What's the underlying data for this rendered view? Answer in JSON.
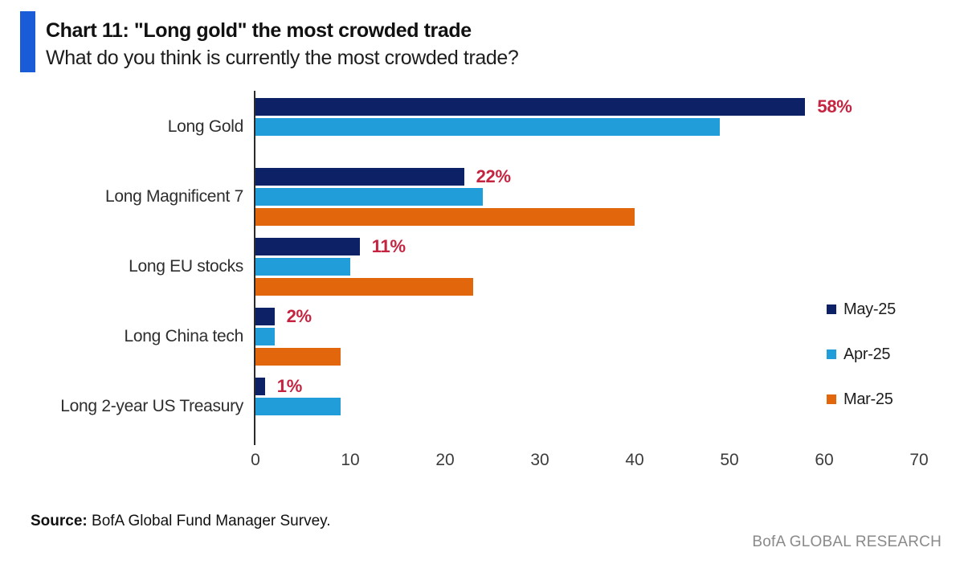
{
  "header": {
    "title": "Chart 11: \"Long gold\" the most crowded trade",
    "subtitle": "What do you think is currently the most crowded trade?",
    "accent_color": "#1A5BD7"
  },
  "chart_data": {
    "type": "bar",
    "orientation": "horizontal",
    "title": "Chart 11: \"Long gold\" the most crowded trade",
    "subtitle": "What do you think is currently the most crowded trade?",
    "categories": [
      "Long Gold",
      "Long Magnificent 7",
      "Long EU stocks",
      "Long China tech",
      "Long 2-year US Treasury"
    ],
    "series": [
      {
        "name": "May-25",
        "color": "#0D2167",
        "values": [
          58,
          22,
          11,
          2,
          1
        ]
      },
      {
        "name": "Apr-25",
        "color": "#219ED9",
        "values": [
          49,
          24,
          10,
          2,
          9
        ]
      },
      {
        "name": "Mar-25",
        "color": "#E2660B",
        "values": [
          null,
          40,
          23,
          9,
          null
        ]
      }
    ],
    "value_labels": {
      "applies_to_series": "May-25",
      "texts": [
        "58%",
        "22%",
        "11%",
        "2%",
        "1%"
      ],
      "color": "#C52441"
    },
    "x_ticks": [
      "0",
      "10",
      "20",
      "30",
      "40",
      "50",
      "60",
      "70"
    ],
    "xlim": [
      0,
      70
    ],
    "grid": false,
    "legend_position": "right",
    "axis_color": "#2b2b2b"
  },
  "footer": {
    "source_label": "Source:",
    "source_text": " BofA Global Fund Manager Survey.",
    "brand": "BofA GLOBAL RESEARCH"
  }
}
